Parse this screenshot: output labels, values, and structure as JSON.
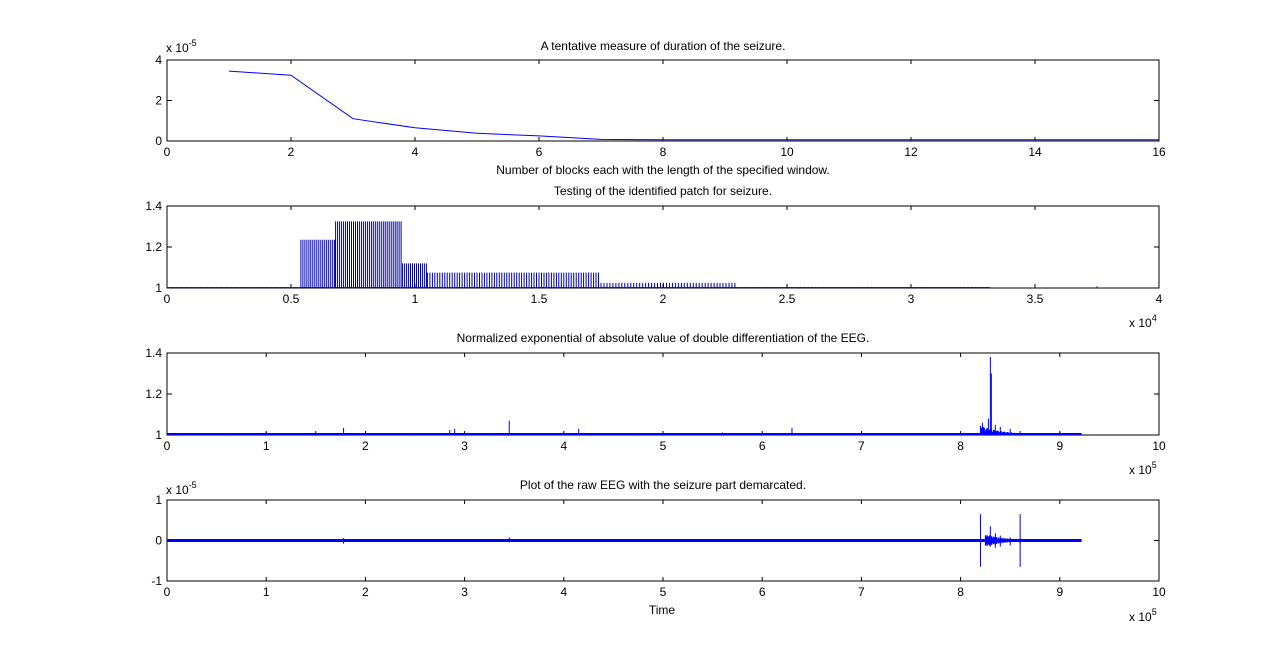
{
  "chart_data": [
    {
      "type": "line",
      "title": "A tentative measure of duration of the seizure.",
      "xlabel": "Number of blocks each with the length of the specified window.",
      "ylabel": "",
      "xlim": [
        0,
        16
      ],
      "ylim": [
        0,
        4
      ],
      "x_ticks": [
        0,
        2,
        4,
        6,
        8,
        10,
        12,
        14,
        16
      ],
      "y_ticks": [
        0,
        2,
        4
      ],
      "x_tick_labels": [
        "0",
        "2",
        "4",
        "6",
        "8",
        "10",
        "12",
        "14",
        "16"
      ],
      "y_tick_labels": [
        "0",
        "2",
        "4"
      ],
      "y_multiplier": {
        "base": "x 10",
        "exp": "-5"
      },
      "x_multiplier": null,
      "color": "#0000ff",
      "series": [
        {
          "x": [
            1,
            2,
            3,
            4,
            5,
            6,
            7,
            8,
            9,
            10,
            11,
            12,
            13,
            14,
            15,
            16
          ],
          "y": [
            3.45,
            3.25,
            1.1,
            0.65,
            0.38,
            0.25,
            0.08,
            0.06,
            0.06,
            0.06,
            0.06,
            0.06,
            0.06,
            0.06,
            0.06,
            0.06
          ]
        }
      ]
    },
    {
      "type": "line",
      "title": "Testing of the identified patch for seizure.",
      "xlabel": "",
      "ylabel": "",
      "xlim": [
        0,
        4
      ],
      "ylim": [
        1,
        1.4
      ],
      "x_ticks": [
        0,
        0.5,
        1,
        1.5,
        2,
        2.5,
        3,
        3.5,
        4
      ],
      "y_ticks": [
        1,
        1.2,
        1.4
      ],
      "x_tick_labels": [
        "0",
        "0.5",
        "1",
        "1.5",
        "2",
        "2.5",
        "3",
        "3.5",
        "4"
      ],
      "y_tick_labels": [
        "1",
        "1.2",
        "1.4"
      ],
      "x_multiplier": {
        "base": "x 10",
        "exp": "4"
      },
      "y_multiplier": null,
      "color": "#0000aa",
      "spikes": [
        {
          "from": 0.0,
          "to": 0.54,
          "height": 1.005,
          "step": 0.02
        },
        {
          "from": 0.54,
          "to": 0.68,
          "height": 1.235,
          "step": 0.008
        },
        {
          "from": 0.68,
          "to": 0.95,
          "height": 1.325,
          "step": 0.008
        },
        {
          "from": 0.95,
          "to": 1.05,
          "height": 1.12,
          "step": 0.008
        },
        {
          "from": 1.05,
          "to": 1.75,
          "height": 1.075,
          "step": 0.01
        },
        {
          "from": 1.75,
          "to": 2.3,
          "height": 1.025,
          "step": 0.012
        },
        {
          "from": 2.3,
          "to": 3.32,
          "height": 1.005,
          "step": 0.015
        }
      ],
      "isolated_spikes": [
        {
          "x": 3.5,
          "height": 1.005
        },
        {
          "x": 3.75,
          "height": 1.008
        }
      ]
    },
    {
      "type": "line",
      "title": "Normalized exponential of absolute value of double differentiation of the EEG.",
      "xlabel": "",
      "ylabel": "",
      "xlim": [
        0,
        10
      ],
      "ylim": [
        1,
        1.4
      ],
      "x_ticks": [
        0,
        1,
        2,
        3,
        4,
        5,
        6,
        7,
        8,
        9,
        10
      ],
      "y_ticks": [
        1,
        1.2,
        1.4
      ],
      "x_tick_labels": [
        "0",
        "1",
        "2",
        "3",
        "4",
        "5",
        "6",
        "7",
        "8",
        "9",
        "10"
      ],
      "y_tick_labels": [
        "1",
        "1.2",
        "1.4"
      ],
      "x_multiplier": {
        "base": "x 10",
        "exp": "5"
      },
      "y_multiplier": null,
      "color": "#0000ff",
      "baseline": 1.0,
      "data_end": 9.22,
      "spikes": [
        {
          "x": 0.6,
          "h": 1.01
        },
        {
          "x": 1.0,
          "h": 1.015
        },
        {
          "x": 1.5,
          "h": 1.02
        },
        {
          "x": 1.78,
          "h": 1.035
        },
        {
          "x": 2.45,
          "h": 1.01
        },
        {
          "x": 2.85,
          "h": 1.025
        },
        {
          "x": 2.9,
          "h": 1.03
        },
        {
          "x": 3.3,
          "h": 1.01
        },
        {
          "x": 3.45,
          "h": 1.07
        },
        {
          "x": 4.15,
          "h": 1.03
        },
        {
          "x": 4.7,
          "h": 1.01
        },
        {
          "x": 5.6,
          "h": 1.012
        },
        {
          "x": 6.0,
          "h": 1.01
        },
        {
          "x": 6.3,
          "h": 1.035
        },
        {
          "x": 7.5,
          "h": 1.01
        },
        {
          "x": 8.22,
          "h": 1.06
        },
        {
          "x": 8.28,
          "h": 1.08
        },
        {
          "x": 8.3,
          "h": 1.38
        },
        {
          "x": 8.31,
          "h": 1.3
        },
        {
          "x": 8.35,
          "h": 1.05
        },
        {
          "x": 8.4,
          "h": 1.04
        },
        {
          "x": 8.5,
          "h": 1.03
        },
        {
          "x": 8.6,
          "h": 1.02
        },
        {
          "x": 9.0,
          "h": 1.015
        }
      ]
    },
    {
      "type": "line",
      "title": "Plot of the raw EEG with the seizure part demarcated.",
      "xlabel": "Time",
      "ylabel": "",
      "xlim": [
        0,
        10
      ],
      "ylim": [
        -1,
        1
      ],
      "x_ticks": [
        0,
        1,
        2,
        3,
        4,
        5,
        6,
        7,
        8,
        9,
        10
      ],
      "y_ticks": [
        -1,
        0,
        1
      ],
      "x_tick_labels": [
        "0",
        "1",
        "2",
        "3",
        "4",
        "5",
        "6",
        "7",
        "8",
        "9",
        "10"
      ],
      "y_tick_labels": [
        "-1",
        "0",
        "1"
      ],
      "x_multiplier": {
        "base": "x 10",
        "exp": "5"
      },
      "y_multiplier": {
        "base": "x 10",
        "exp": "-5"
      },
      "color": "#0000ff",
      "data_end": 9.22,
      "seizure_markers": [
        8.2,
        8.6
      ],
      "marker_ylim": [
        -0.65,
        0.65
      ],
      "spikes": [
        {
          "x": 1.78,
          "lo": -0.08,
          "hi": 0.06
        },
        {
          "x": 3.45,
          "lo": -0.05,
          "hi": 0.08
        },
        {
          "x": 8.3,
          "lo": -0.15,
          "hi": 0.35
        },
        {
          "x": 8.35,
          "lo": -0.18,
          "hi": 0.18
        },
        {
          "x": 8.4,
          "lo": -0.15,
          "hi": 0.12
        },
        {
          "x": 8.5,
          "lo": -0.12,
          "hi": 0.08
        },
        {
          "x": 8.6,
          "lo": -0.08,
          "hi": 0.06
        }
      ]
    }
  ]
}
